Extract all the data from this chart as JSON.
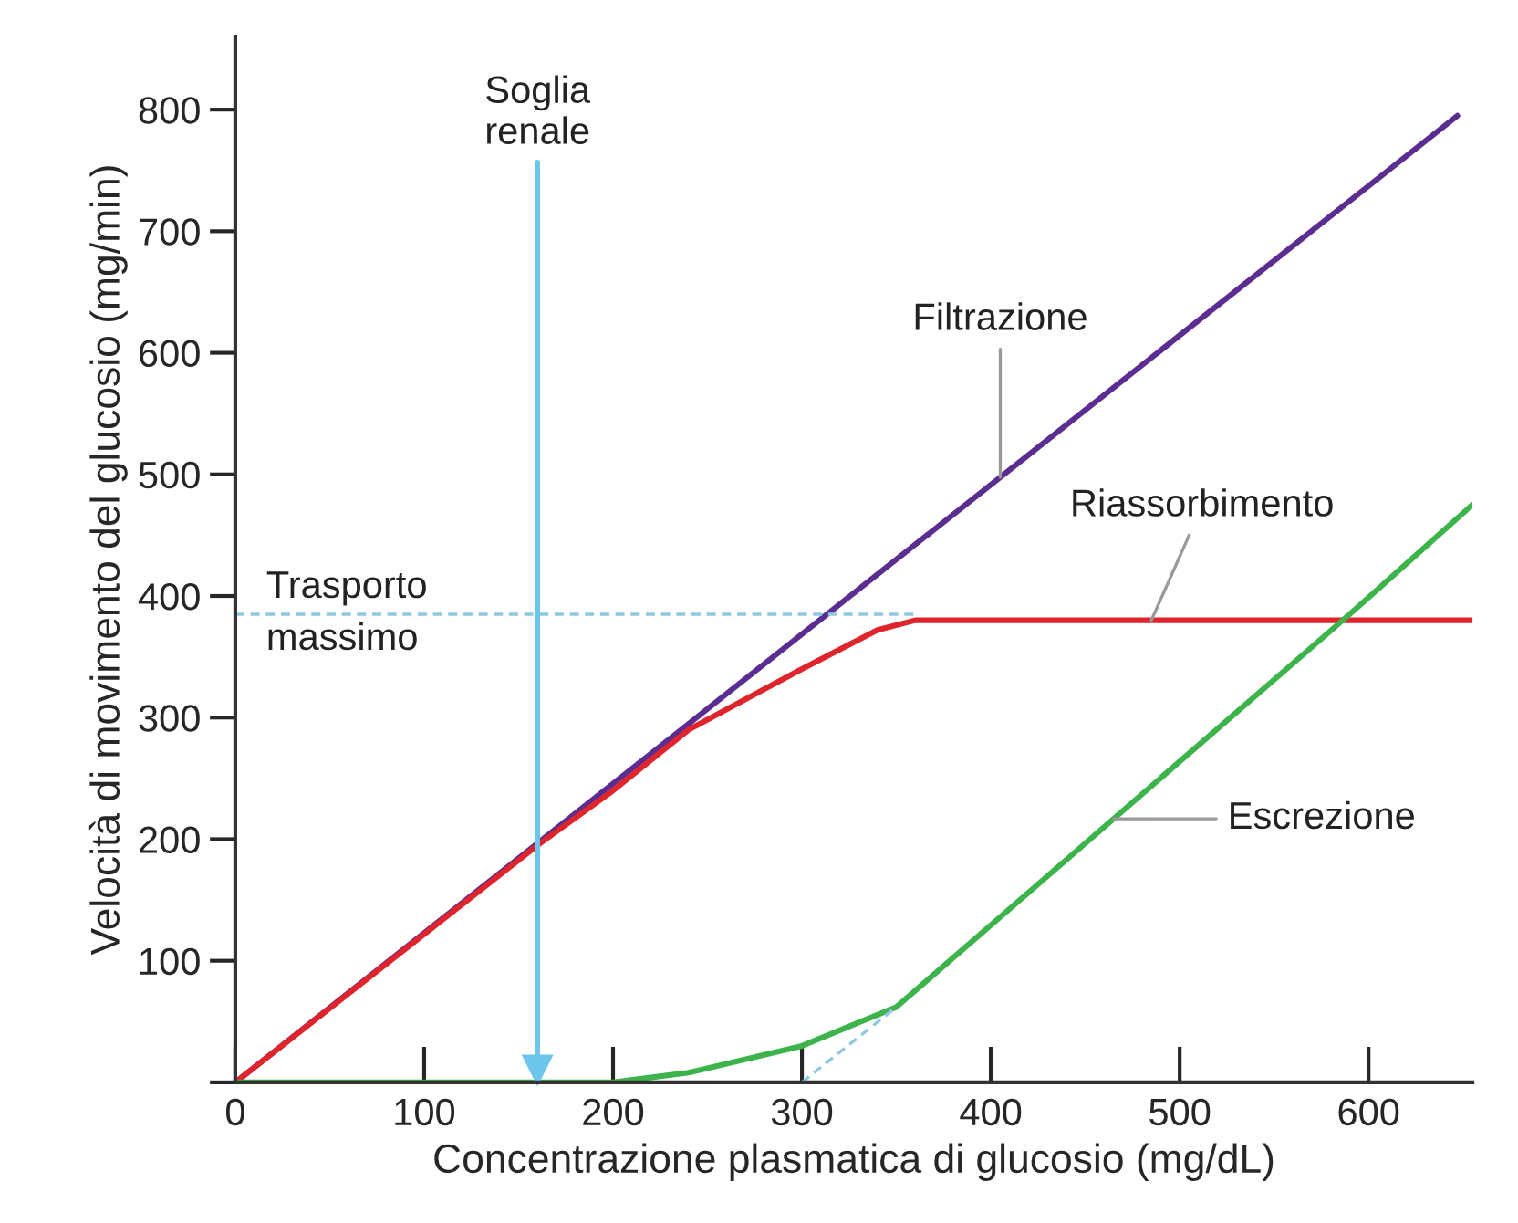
{
  "chart_data": {
    "type": "line",
    "xlabel": "Concentrazione plasmatica di glucosio (mg/dL)",
    "ylabel": "Velocità di movimento del glucosio (mg/min)",
    "xlim": [
      0,
      655
    ],
    "ylim": [
      0,
      860
    ],
    "xticks": [
      0,
      100,
      200,
      300,
      400,
      500,
      600
    ],
    "yticks": [
      {
        "value": 0,
        "label": null
      },
      100,
      200,
      300,
      400,
      500,
      600,
      700,
      800
    ],
    "grid": false,
    "legend": false,
    "marker": "none",
    "line_style": "solid",
    "series": [
      {
        "name": "Filtrazione",
        "color": "#5b2d90",
        "x": [
          0,
          647
        ],
        "values": [
          0,
          795
        ]
      },
      {
        "name": "Riassorbimento",
        "color": "#e0242b",
        "x": [
          0,
          160,
          200,
          240,
          300,
          340,
          360,
          655
        ],
        "values": [
          0,
          195,
          240,
          290,
          340,
          372,
          380,
          380
        ]
      },
      {
        "name": "Escrezione",
        "color": "#3cb44b",
        "x": [
          0,
          200,
          240,
          300,
          350,
          590,
          655
        ],
        "values": [
          0,
          0,
          8,
          30,
          62,
          385,
          475
        ]
      },
      {
        "color": "#8fc8e0",
        "line_style": "dashed",
        "x": [
          300,
          350
        ],
        "values": [
          0,
          62
        ]
      },
      {
        "color": "#8fc8e0",
        "line_style": "dashed",
        "x": [
          0,
          360
        ],
        "values": [
          385,
          385
        ]
      }
    ],
    "ref_lines": [
      {
        "axis": "x",
        "value": 160,
        "label": "Soglia\nrenale",
        "color": "#6cc5ea"
      }
    ],
    "annotations": [
      "Trasporto\nmassimo"
    ]
  }
}
